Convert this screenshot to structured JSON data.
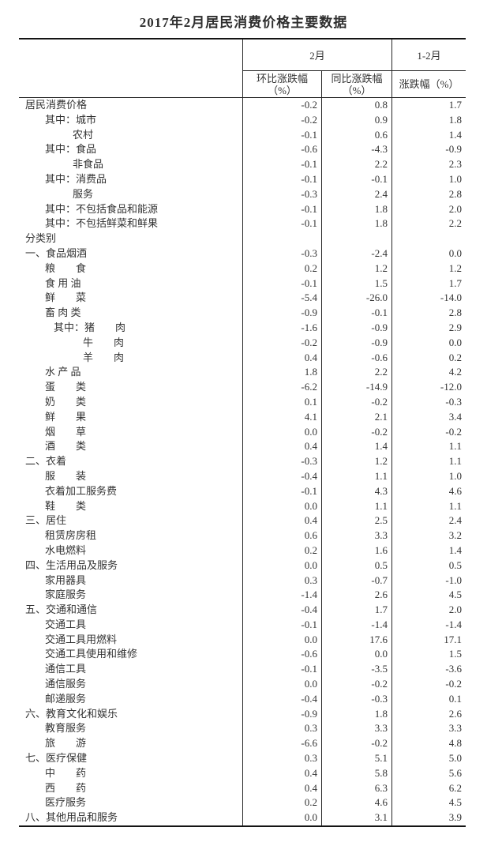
{
  "chart_data": {
    "type": "table",
    "title": "2017年2月居民消费价格主要数据",
    "column_groups": [
      {
        "label": "2月",
        "span": 2
      },
      {
        "label": "1-2月",
        "span": 1
      }
    ],
    "columns": [
      {
        "line1": "环比涨跌幅",
        "line2": "（%）"
      },
      {
        "line1": "同比涨跌幅",
        "line2": "（%）"
      },
      {
        "line1": "涨跌幅（%）",
        "line2": ""
      }
    ],
    "rows": [
      {
        "label": "居民消费价格",
        "indent": 0,
        "values": [
          "-0.2",
          "0.8",
          "1.7"
        ]
      },
      {
        "label": "其中：城市",
        "indent": 1,
        "values": [
          "-0.2",
          "0.9",
          "1.8"
        ]
      },
      {
        "label": "农村",
        "indent": 2,
        "values": [
          "-0.1",
          "0.6",
          "1.4"
        ]
      },
      {
        "label": "其中：食品",
        "indent": 1,
        "values": [
          "-0.6",
          "-4.3",
          "-0.9"
        ]
      },
      {
        "label": "非食品",
        "indent": 2,
        "values": [
          "-0.1",
          "2.2",
          "2.3"
        ]
      },
      {
        "label": "其中：消费品",
        "indent": 1,
        "values": [
          "-0.1",
          "-0.1",
          "1.0"
        ]
      },
      {
        "label": "服务",
        "indent": 2,
        "values": [
          "-0.3",
          "2.4",
          "2.8"
        ]
      },
      {
        "label": "其中：不包括食品和能源",
        "indent": 1,
        "values": [
          "-0.1",
          "1.8",
          "2.0"
        ]
      },
      {
        "label": "其中：不包括鲜菜和鲜果",
        "indent": 1,
        "values": [
          "-0.1",
          "1.8",
          "2.2"
        ]
      },
      {
        "label": "分类别",
        "indent": 0,
        "values": [
          "",
          "",
          ""
        ]
      },
      {
        "label": "一、食品烟酒",
        "indent": 0,
        "values": [
          "-0.3",
          "-2.4",
          "0.0"
        ]
      },
      {
        "label": "粮　　食",
        "indent": 1,
        "values": [
          "0.2",
          "1.2",
          "1.2"
        ]
      },
      {
        "label": "食 用 油",
        "indent": 1,
        "values": [
          "-0.1",
          "1.5",
          "1.7"
        ]
      },
      {
        "label": "鲜　　菜",
        "indent": 1,
        "values": [
          "-5.4",
          "-26.0",
          "-14.0"
        ]
      },
      {
        "label": "畜 肉 类",
        "indent": 1,
        "values": [
          "-0.9",
          "-0.1",
          "2.8"
        ]
      },
      {
        "label": "其中：猪　　肉",
        "indent": 3,
        "values": [
          "-1.6",
          "-0.9",
          "2.9"
        ]
      },
      {
        "label": "牛　　肉",
        "indent": 4,
        "values": [
          "-0.2",
          "-0.9",
          "0.0"
        ]
      },
      {
        "label": "羊　　肉",
        "indent": 4,
        "values": [
          "0.4",
          "-0.6",
          "0.2"
        ]
      },
      {
        "label": "水 产 品",
        "indent": 1,
        "values": [
          "1.8",
          "2.2",
          "4.2"
        ]
      },
      {
        "label": "蛋　　类",
        "indent": 1,
        "values": [
          "-6.2",
          "-14.9",
          "-12.0"
        ]
      },
      {
        "label": "奶　　类",
        "indent": 1,
        "values": [
          "0.1",
          "-0.2",
          "-0.3"
        ]
      },
      {
        "label": "鲜　　果",
        "indent": 1,
        "values": [
          "4.1",
          "2.1",
          "3.4"
        ]
      },
      {
        "label": "烟　　草",
        "indent": 1,
        "values": [
          "0.0",
          "-0.2",
          "-0.2"
        ]
      },
      {
        "label": "酒　　类",
        "indent": 1,
        "values": [
          "0.4",
          "1.4",
          "1.1"
        ]
      },
      {
        "label": "二、衣着",
        "indent": 0,
        "values": [
          "-0.3",
          "1.2",
          "1.1"
        ]
      },
      {
        "label": "服　　装",
        "indent": 1,
        "values": [
          "-0.4",
          "1.1",
          "1.0"
        ]
      },
      {
        "label": "衣着加工服务费",
        "indent": 1,
        "values": [
          "-0.1",
          "4.3",
          "4.6"
        ]
      },
      {
        "label": "鞋　　类",
        "indent": 1,
        "values": [
          "0.0",
          "1.1",
          "1.1"
        ]
      },
      {
        "label": "三、居住",
        "indent": 0,
        "values": [
          "0.4",
          "2.5",
          "2.4"
        ]
      },
      {
        "label": "租赁房房租",
        "indent": 1,
        "values": [
          "0.6",
          "3.3",
          "3.2"
        ]
      },
      {
        "label": "水电燃料",
        "indent": 1,
        "values": [
          "0.2",
          "1.6",
          "1.4"
        ]
      },
      {
        "label": "四、生活用品及服务",
        "indent": 0,
        "values": [
          "0.0",
          "0.5",
          "0.5"
        ]
      },
      {
        "label": "家用器具",
        "indent": 1,
        "values": [
          "0.3",
          "-0.7",
          "-1.0"
        ]
      },
      {
        "label": "家庭服务",
        "indent": 1,
        "values": [
          "-1.4",
          "2.6",
          "4.5"
        ]
      },
      {
        "label": "五、交通和通信",
        "indent": 0,
        "values": [
          "-0.4",
          "1.7",
          "2.0"
        ]
      },
      {
        "label": "交通工具",
        "indent": 1,
        "values": [
          "-0.1",
          "-1.4",
          "-1.4"
        ]
      },
      {
        "label": "交通工具用燃料",
        "indent": 1,
        "values": [
          "0.0",
          "17.6",
          "17.1"
        ]
      },
      {
        "label": "交通工具使用和维修",
        "indent": 1,
        "values": [
          "-0.6",
          "0.0",
          "1.5"
        ]
      },
      {
        "label": "通信工具",
        "indent": 1,
        "values": [
          "-0.1",
          "-3.5",
          "-3.6"
        ]
      },
      {
        "label": "通信服务",
        "indent": 1,
        "values": [
          "0.0",
          "-0.2",
          "-0.2"
        ]
      },
      {
        "label": "邮递服务",
        "indent": 1,
        "values": [
          "-0.4",
          "-0.3",
          "0.1"
        ]
      },
      {
        "label": "六、教育文化和娱乐",
        "indent": 0,
        "values": [
          "-0.9",
          "1.8",
          "2.6"
        ]
      },
      {
        "label": "教育服务",
        "indent": 1,
        "values": [
          "0.3",
          "3.3",
          "3.3"
        ]
      },
      {
        "label": "旅　　游",
        "indent": 1,
        "values": [
          "-6.6",
          "-0.2",
          "4.8"
        ]
      },
      {
        "label": "七、医疗保健",
        "indent": 0,
        "values": [
          "0.3",
          "5.1",
          "5.0"
        ]
      },
      {
        "label": "中　　药",
        "indent": 1,
        "values": [
          "0.4",
          "5.8",
          "5.6"
        ]
      },
      {
        "label": "西　　药",
        "indent": 1,
        "values": [
          "0.4",
          "6.3",
          "6.2"
        ]
      },
      {
        "label": "医疗服务",
        "indent": 1,
        "values": [
          "0.2",
          "4.6",
          "4.5"
        ]
      },
      {
        "label": "八、其他用品和服务",
        "indent": 0,
        "values": [
          "0.0",
          "3.1",
          "3.9"
        ]
      }
    ]
  }
}
